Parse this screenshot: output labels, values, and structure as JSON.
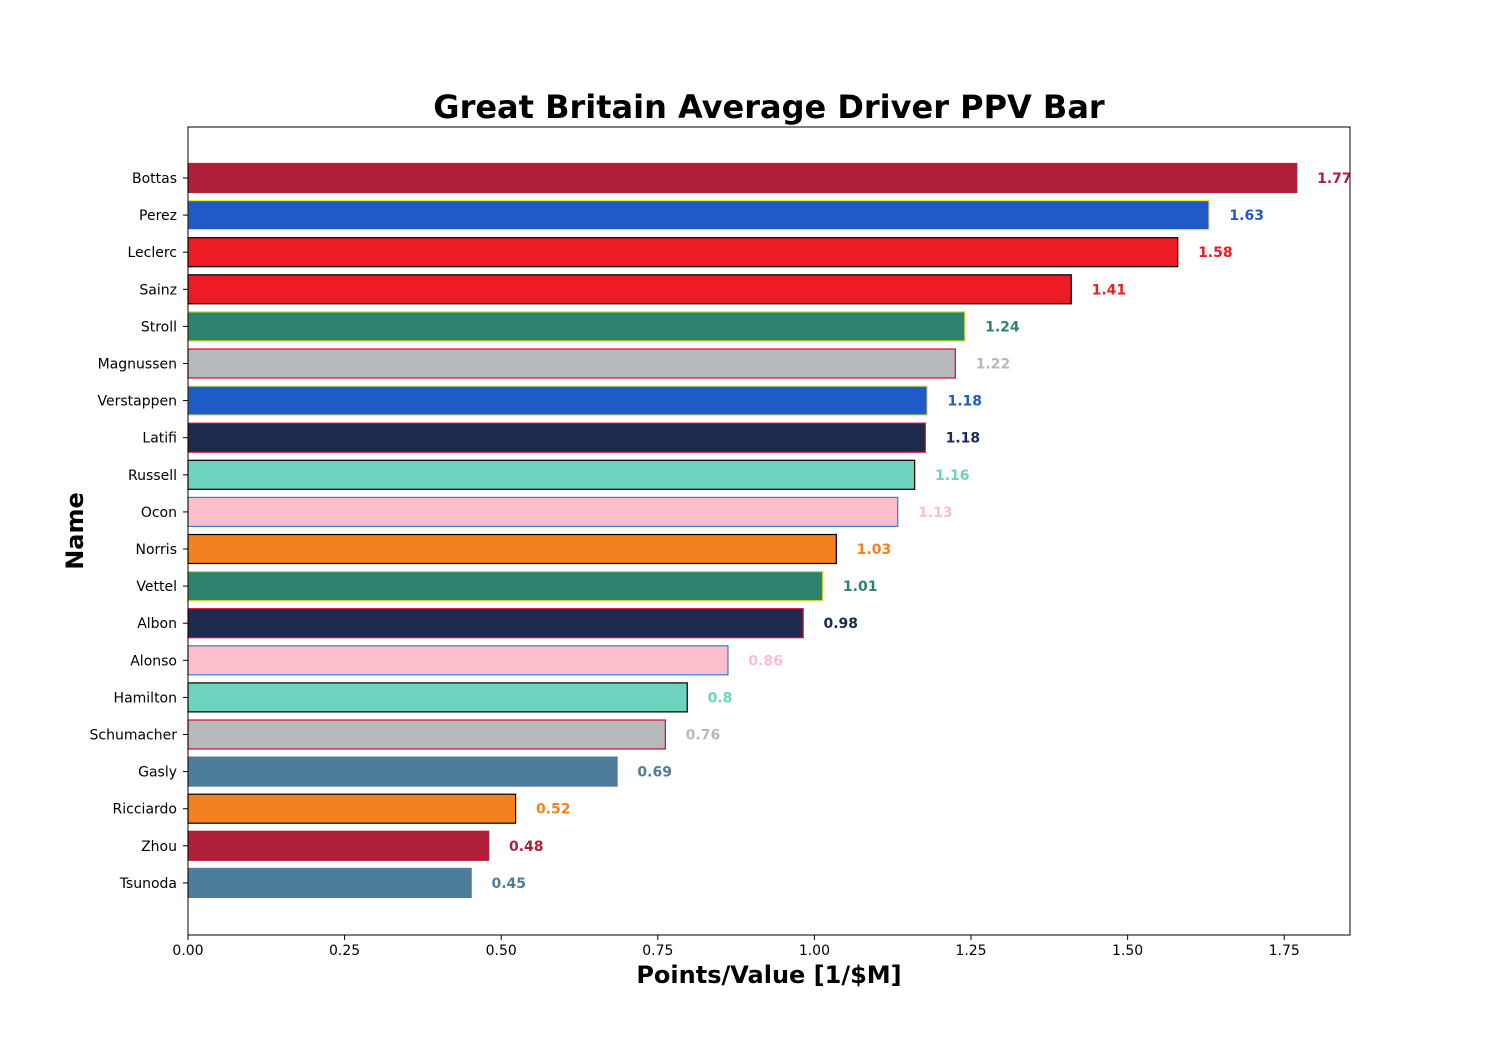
{
  "chart_data": {
    "type": "bar",
    "orientation": "horizontal",
    "title": "Great Britain Average Driver PPV Bar",
    "xlabel": "Points/Value [1/$M]",
    "ylabel": "Name",
    "xlim": [
      0,
      1.855
    ],
    "xticks": [
      "0.00",
      "0.25",
      "0.50",
      "0.75",
      "1.00",
      "1.25",
      "1.50",
      "1.75"
    ],
    "grid": false,
    "bars": [
      {
        "name": "Bottas",
        "value": 1.77,
        "label": "1.77",
        "fill": "#B01F38",
        "edge": "#B01F38"
      },
      {
        "name": "Perez",
        "value": 1.63,
        "label": "1.63",
        "fill": "#1F5BC7",
        "edge": "#F2E32B"
      },
      {
        "name": "Leclerc",
        "value": 1.58,
        "label": "1.58",
        "fill": "#ED1C24",
        "edge": "#000000"
      },
      {
        "name": "Sainz",
        "value": 1.41,
        "label": "1.41",
        "fill": "#ED1C24",
        "edge": "#000000"
      },
      {
        "name": "Stroll",
        "value": 1.24,
        "label": "1.24",
        "fill": "#2D826D",
        "edge": "#C6D92B"
      },
      {
        "name": "Magnussen",
        "value": 1.225,
        "label": "1.22",
        "fill": "#B6BABD",
        "edge": "#E6002E"
      },
      {
        "name": "Verstappen",
        "value": 1.18,
        "label": "1.18",
        "fill": "#1F5BC7",
        "edge": "#F2E32B"
      },
      {
        "name": "Latifi",
        "value": 1.177,
        "label": "1.18",
        "fill": "#1B2A4D",
        "edge": "#E6002E"
      },
      {
        "name": "Russell",
        "value": 1.16,
        "label": "1.16",
        "fill": "#6CD3BF",
        "edge": "#000000"
      },
      {
        "name": "Ocon",
        "value": 1.133,
        "label": "1.13",
        "fill": "#FDBECB",
        "edge": "#2D7FD6"
      },
      {
        "name": "Norris",
        "value": 1.035,
        "label": "1.03",
        "fill": "#F58020",
        "edge": "#000000"
      },
      {
        "name": "Vettel",
        "value": 1.013,
        "label": "1.01",
        "fill": "#2D826D",
        "edge": "#C6D92B"
      },
      {
        "name": "Albon",
        "value": 0.982,
        "label": "0.98",
        "fill": "#1B2A4D",
        "edge": "#E6002E"
      },
      {
        "name": "Alonso",
        "value": 0.862,
        "label": "0.86",
        "fill": "#FDBECB",
        "edge": "#2D7FD6"
      },
      {
        "name": "Hamilton",
        "value": 0.797,
        "label": "0.8",
        "fill": "#6CD3BF",
        "edge": "#000000"
      },
      {
        "name": "Schumacher",
        "value": 0.762,
        "label": "0.76",
        "fill": "#B6BABD",
        "edge": "#E6002E"
      },
      {
        "name": "Gasly",
        "value": 0.685,
        "label": "0.69",
        "fill": "#4E7C9B",
        "edge": "#4E7C9B"
      },
      {
        "name": "Ricciardo",
        "value": 0.523,
        "label": "0.52",
        "fill": "#F58020",
        "edge": "#000000"
      },
      {
        "name": "Zhou",
        "value": 0.48,
        "label": "0.48",
        "fill": "#B01F38",
        "edge": "#B01F38"
      },
      {
        "name": "Tsunoda",
        "value": 0.452,
        "label": "0.45",
        "fill": "#4E7C9B",
        "edge": "#4E7C9B"
      }
    ]
  }
}
